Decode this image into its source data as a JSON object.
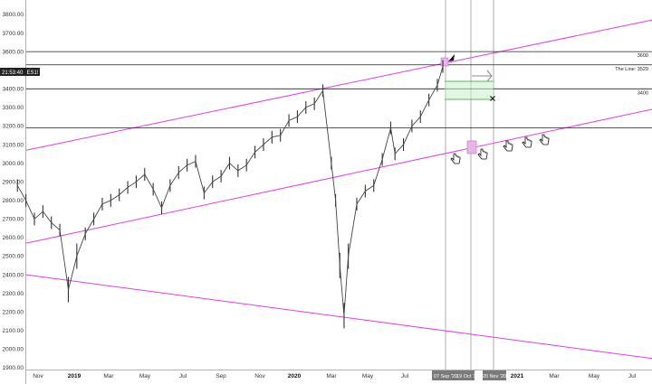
{
  "chart_data": {
    "type": "line",
    "symbol": "ES1!",
    "time": "21:53:40",
    "price_tag": "3529",
    "y_ticks": [
      "3800.00",
      "3700.00",
      "3600.00",
      "3500.00",
      "3400.00",
      "3300.00",
      "3200.00",
      "3100.00",
      "3000.00",
      "2900.00",
      "2800.00",
      "2700.00",
      "2600.00",
      "2500.00",
      "2400.00",
      "2300.00",
      "2200.00",
      "2100.00",
      "2000.00",
      "1900.00"
    ],
    "x_ticks": [
      "Nov",
      "2019",
      "Mar",
      "May",
      "Jul",
      "Sep",
      "Nov",
      "2020",
      "Mar",
      "May",
      "Jul",
      "2021",
      "Mar",
      "May",
      "Jul"
    ],
    "x_bold_ticks": [
      "2019",
      "2020",
      "2021"
    ],
    "date_markers": [
      "07 Sep '20",
      "19 Oct '2",
      "20 Nov '20"
    ],
    "horizontal_lines": [
      {
        "value": 3600,
        "label": "3600"
      },
      {
        "value": 3529,
        "label": "The Line: 3529"
      },
      {
        "value": 3400,
        "label": "3400"
      },
      {
        "value": 3190,
        "label": ""
      }
    ],
    "ylim": [
      1900,
      3850
    ],
    "series": [
      {
        "values": [
          [
            "2018-10-01",
            2880
          ],
          [
            "2018-10-15",
            2800
          ],
          [
            "2018-10-29",
            2700
          ],
          [
            "2018-11-12",
            2740
          ],
          [
            "2018-11-26",
            2680
          ],
          [
            "2018-12-10",
            2640
          ],
          [
            "2018-12-24",
            2320
          ],
          [
            "2019-01-07",
            2500
          ],
          [
            "2019-01-21",
            2620
          ],
          [
            "2019-02-04",
            2700
          ],
          [
            "2019-02-18",
            2780
          ],
          [
            "2019-03-04",
            2800
          ],
          [
            "2019-03-18",
            2830
          ],
          [
            "2019-04-01",
            2870
          ],
          [
            "2019-04-15",
            2900
          ],
          [
            "2019-04-29",
            2940
          ],
          [
            "2019-05-13",
            2860
          ],
          [
            "2019-05-27",
            2760
          ],
          [
            "2019-06-10",
            2880
          ],
          [
            "2019-06-24",
            2950
          ],
          [
            "2019-07-08",
            2990
          ],
          [
            "2019-07-22",
            3010
          ],
          [
            "2019-08-05",
            2840
          ],
          [
            "2019-08-19",
            2900
          ],
          [
            "2019-09-02",
            2930
          ],
          [
            "2019-09-16",
            3000
          ],
          [
            "2019-09-30",
            2960
          ],
          [
            "2019-10-14",
            2990
          ],
          [
            "2019-10-28",
            3060
          ],
          [
            "2019-11-11",
            3100
          ],
          [
            "2019-11-25",
            3140
          ],
          [
            "2019-12-09",
            3150
          ],
          [
            "2019-12-23",
            3230
          ],
          [
            "2020-01-06",
            3250
          ],
          [
            "2020-01-20",
            3300
          ],
          [
            "2020-02-03",
            3320
          ],
          [
            "2020-02-17",
            3390
          ],
          [
            "2020-03-02",
            3000
          ],
          [
            "2020-03-09",
            2800
          ],
          [
            "2020-03-16",
            2450
          ],
          [
            "2020-03-23",
            2180
          ],
          [
            "2020-03-30",
            2500
          ],
          [
            "2020-04-13",
            2780
          ],
          [
            "2020-04-27",
            2850
          ],
          [
            "2020-05-11",
            2880
          ],
          [
            "2020-05-25",
            3020
          ],
          [
            "2020-06-08",
            3190
          ],
          [
            "2020-06-15",
            3050
          ],
          [
            "2020-06-29",
            3100
          ],
          [
            "2020-07-13",
            3200
          ],
          [
            "2020-07-27",
            3250
          ],
          [
            "2020-08-10",
            3340
          ],
          [
            "2020-08-24",
            3420
          ],
          [
            "2020-09-02",
            3520
          ]
        ]
      }
    ],
    "channel_lines": [
      {
        "from": [
          "2018-10-01",
          3070
        ],
        "to": [
          "2021-07-31",
          3770
        ]
      },
      {
        "from": [
          "2018-10-01",
          2570
        ],
        "to": [
          "2021-07-31",
          3290
        ]
      },
      {
        "from": [
          "2018-10-01",
          2400
        ],
        "to": [
          "2021-07-31",
          1950
        ]
      }
    ]
  }
}
